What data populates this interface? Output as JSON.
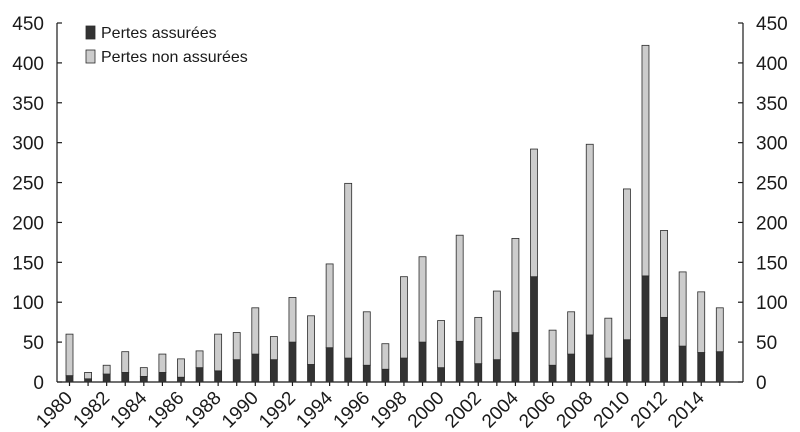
{
  "chart_data": {
    "type": "bar",
    "stacked": true,
    "categories": [
      "1980",
      "1981",
      "1982",
      "1983",
      "1984",
      "1985",
      "1986",
      "1987",
      "1988",
      "1989",
      "1990",
      "1991",
      "1992",
      "1993",
      "1994",
      "1995",
      "1996",
      "1997",
      "1998",
      "1999",
      "2000",
      "2001",
      "2002",
      "2003",
      "2004",
      "2005",
      "2006",
      "2007",
      "2008",
      "2009",
      "2010",
      "2011",
      "2012",
      "2013",
      "2014",
      "2015"
    ],
    "x_tick_labels": [
      "1980",
      "1982",
      "1984",
      "1986",
      "1988",
      "1990",
      "1992",
      "1994",
      "1996",
      "1998",
      "2000",
      "2002",
      "2004",
      "2006",
      "2008",
      "2010",
      "2012",
      "2014"
    ],
    "series": [
      {
        "name": "Pertes assurées",
        "color": "#333333",
        "values": [
          8,
          4,
          10,
          12,
          7,
          12,
          6,
          18,
          14,
          28,
          35,
          28,
          50,
          22,
          43,
          30,
          21,
          16,
          30,
          50,
          18,
          51,
          23,
          28,
          62,
          132,
          21,
          35,
          59,
          30,
          53,
          133,
          81,
          45,
          37,
          38
        ]
      },
      {
        "name": "Pertes non assurées",
        "color": "#cccccc",
        "values": [
          52,
          8,
          11,
          26,
          11,
          23,
          23,
          21,
          46,
          34,
          58,
          29,
          56,
          61,
          105,
          219,
          67,
          32,
          102,
          107,
          59,
          133,
          58,
          86,
          118,
          160,
          44,
          53,
          239,
          50,
          189,
          289,
          109,
          93,
          76,
          55
        ]
      }
    ],
    "ylim": [
      0,
      450
    ],
    "yticks": [
      0,
      50,
      100,
      150,
      200,
      250,
      300,
      350,
      400,
      450
    ],
    "y_axis_both_sides": true,
    "grid": false,
    "legend_position": "top-left",
    "title": "",
    "xlabel": "",
    "ylabel": ""
  }
}
